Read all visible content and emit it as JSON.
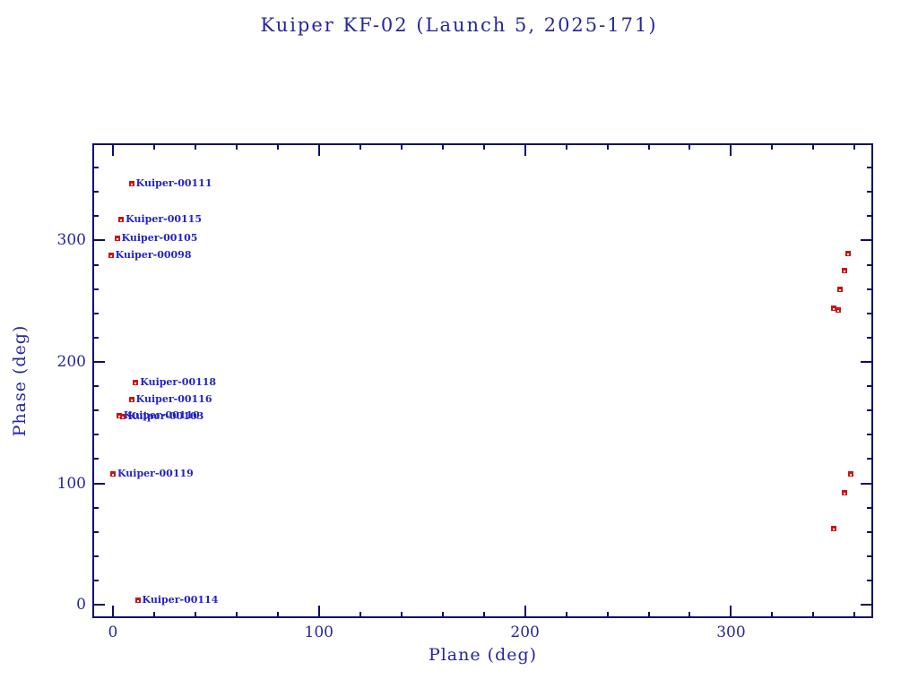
{
  "title": "Kuiper KF-02 (Launch 5, 2025-171)",
  "chart_data": {
    "type": "scatter",
    "title": "Kuiper KF-02 (Launch 5, 2025-171)",
    "xlabel": "Plane (deg)",
    "ylabel": "Phase (deg)",
    "xlim": [
      -10,
      369
    ],
    "ylim": [
      -11,
      380
    ],
    "x_major_ticks": [
      0,
      100,
      200,
      300
    ],
    "y_major_ticks": [
      0,
      100,
      200,
      300
    ],
    "minor_tick_step": 20,
    "grid": false,
    "legend": "none",
    "axis_color": "#0c0c6e",
    "text_color": "#26269e",
    "marker_color": "#cc1414",
    "point_label_color": "#2323c8",
    "points": [
      {
        "label": "Kuiper-00111",
        "plane": 9,
        "phase": 347
      },
      {
        "label": "Kuiper-00115",
        "plane": 4,
        "phase": 317
      },
      {
        "label": "Kuiper-00105",
        "plane": 2,
        "phase": 302
      },
      {
        "label": "Kuiper-00098",
        "plane": -1,
        "phase": 288
      },
      {
        "label": "Kuiper-00118",
        "plane": 11,
        "phase": 183
      },
      {
        "label": "Kuiper-00116",
        "plane": 9,
        "phase": 169
      },
      {
        "label": "Kuiper-00110",
        "plane": 3,
        "phase": 156
      },
      {
        "label": "Kuiper-00103",
        "plane": 5,
        "phase": 155
      },
      {
        "label": "Kuiper-00119",
        "plane": 0,
        "phase": 108
      },
      {
        "label": "Kuiper-00114",
        "plane": 12,
        "phase": 4
      },
      {
        "label": "",
        "plane": 357,
        "phase": 289
      },
      {
        "label": "",
        "plane": 355,
        "phase": 275
      },
      {
        "label": "",
        "plane": 353,
        "phase": 260
      },
      {
        "label": "",
        "plane": 350,
        "phase": 244
      },
      {
        "label": "",
        "plane": 352,
        "phase": 243
      },
      {
        "label": "",
        "plane": 358,
        "phase": 108
      },
      {
        "label": "",
        "plane": 355,
        "phase": 92
      },
      {
        "label": "",
        "plane": 350,
        "phase": 63
      }
    ]
  }
}
